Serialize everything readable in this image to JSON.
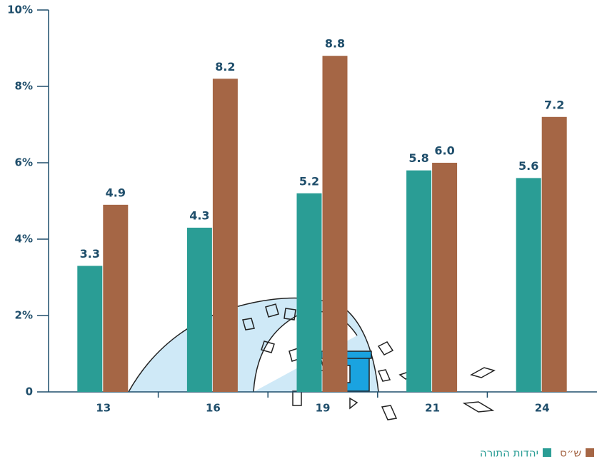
{
  "chart_data": {
    "type": "bar",
    "categories": [
      "13",
      "16",
      "19",
      "21",
      "24"
    ],
    "series": [
      {
        "name": "יהדות התורה",
        "color": "#2a9d95",
        "values": [
          3.3,
          4.3,
          5.2,
          5.8,
          5.6
        ]
      },
      {
        "name": "ש״ס",
        "color": "#a56645",
        "values": [
          4.9,
          8.2,
          8.8,
          6,
          7.2
        ],
        "value_labels": [
          "4.9",
          "8.2",
          "8.8",
          "6.0",
          "7.2"
        ]
      }
    ],
    "ylim": [
      0,
      10
    ],
    "yticks": [
      0,
      {
        "value": 2,
        "label": "2%"
      },
      {
        "value": 4,
        "label": "4%"
      },
      {
        "value": 6,
        "label": "6%"
      },
      {
        "value": 8,
        "label": "8%"
      },
      {
        "value": 10,
        "label": "10%"
      }
    ]
  }
}
